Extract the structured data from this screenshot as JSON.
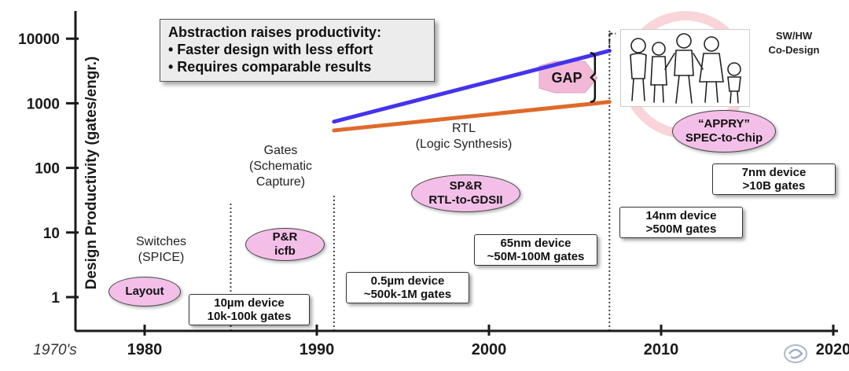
{
  "chart_data": {
    "type": "line",
    "y_scale": "log",
    "ylabel": "Design Productivity (gates/engr.)",
    "y_ticks": [
      1,
      10,
      100,
      1000,
      10000
    ],
    "y_tick_labels": [
      "1",
      "10",
      "100",
      "1000",
      "10000"
    ],
    "ylim": [
      0.5,
      20000
    ],
    "x_ticks": [
      1975,
      1980,
      1990,
      2000,
      2010,
      2020
    ],
    "x_tick_labels": [
      "1970's",
      "1980",
      "1990",
      "2000",
      "2010",
      "2020"
    ],
    "xlim": [
      1972.5,
      2021
    ],
    "era_dividers": [
      1985,
      1991,
      2007
    ],
    "series": [
      {
        "color": "#4433ee",
        "x": [
          1991,
          2007
        ],
        "y": [
          520,
          6500
        ]
      },
      {
        "color": "#e06a2a",
        "x": [
          1991,
          2007
        ],
        "y": [
          380,
          1050
        ]
      }
    ],
    "gap_bracket": {
      "x": 2005.7,
      "y_top": 6000,
      "y_bottom": 1050
    }
  },
  "callout": {
    "title": "Abstraction raises productivity:",
    "bullets": [
      "• Faster design with less effort",
      "• Requires comparable results"
    ]
  },
  "gap_label": "GAP",
  "sw_hw": [
    "SW/HW",
    "Co-Design"
  ],
  "eras": {
    "switches": [
      "Switches",
      "(SPICE)"
    ],
    "gates": [
      "Gates",
      "(Schematic",
      "Capture)"
    ],
    "rtl": [
      "RTL",
      "(Logic Synthesis)"
    ]
  },
  "tools": {
    "layout": [
      "Layout"
    ],
    "pr": [
      "P&R",
      "icfb"
    ],
    "spr": [
      "SP&R",
      "RTL-to-GDSII"
    ],
    "appry": [
      "“APPRY”",
      "SPEC-to-Chip"
    ]
  },
  "devices": {
    "d10um": [
      "10µm device",
      "10k-100k gates"
    ],
    "d05um": [
      "0.5µm device",
      "~500k-1M gates"
    ],
    "d65nm": [
      "65nm device",
      "~50M-100M gates"
    ],
    "d14nm": [
      "14nm device",
      ">500M gates"
    ],
    "d7nm": [
      "7nm device",
      ">10B gates"
    ]
  },
  "colors": {
    "axis": "#1a1a1a",
    "oval_fill": "#f3bfe8",
    "gap_arrow": "#f3b8d8",
    "cartoon_ring": "#f7c9d0"
  }
}
